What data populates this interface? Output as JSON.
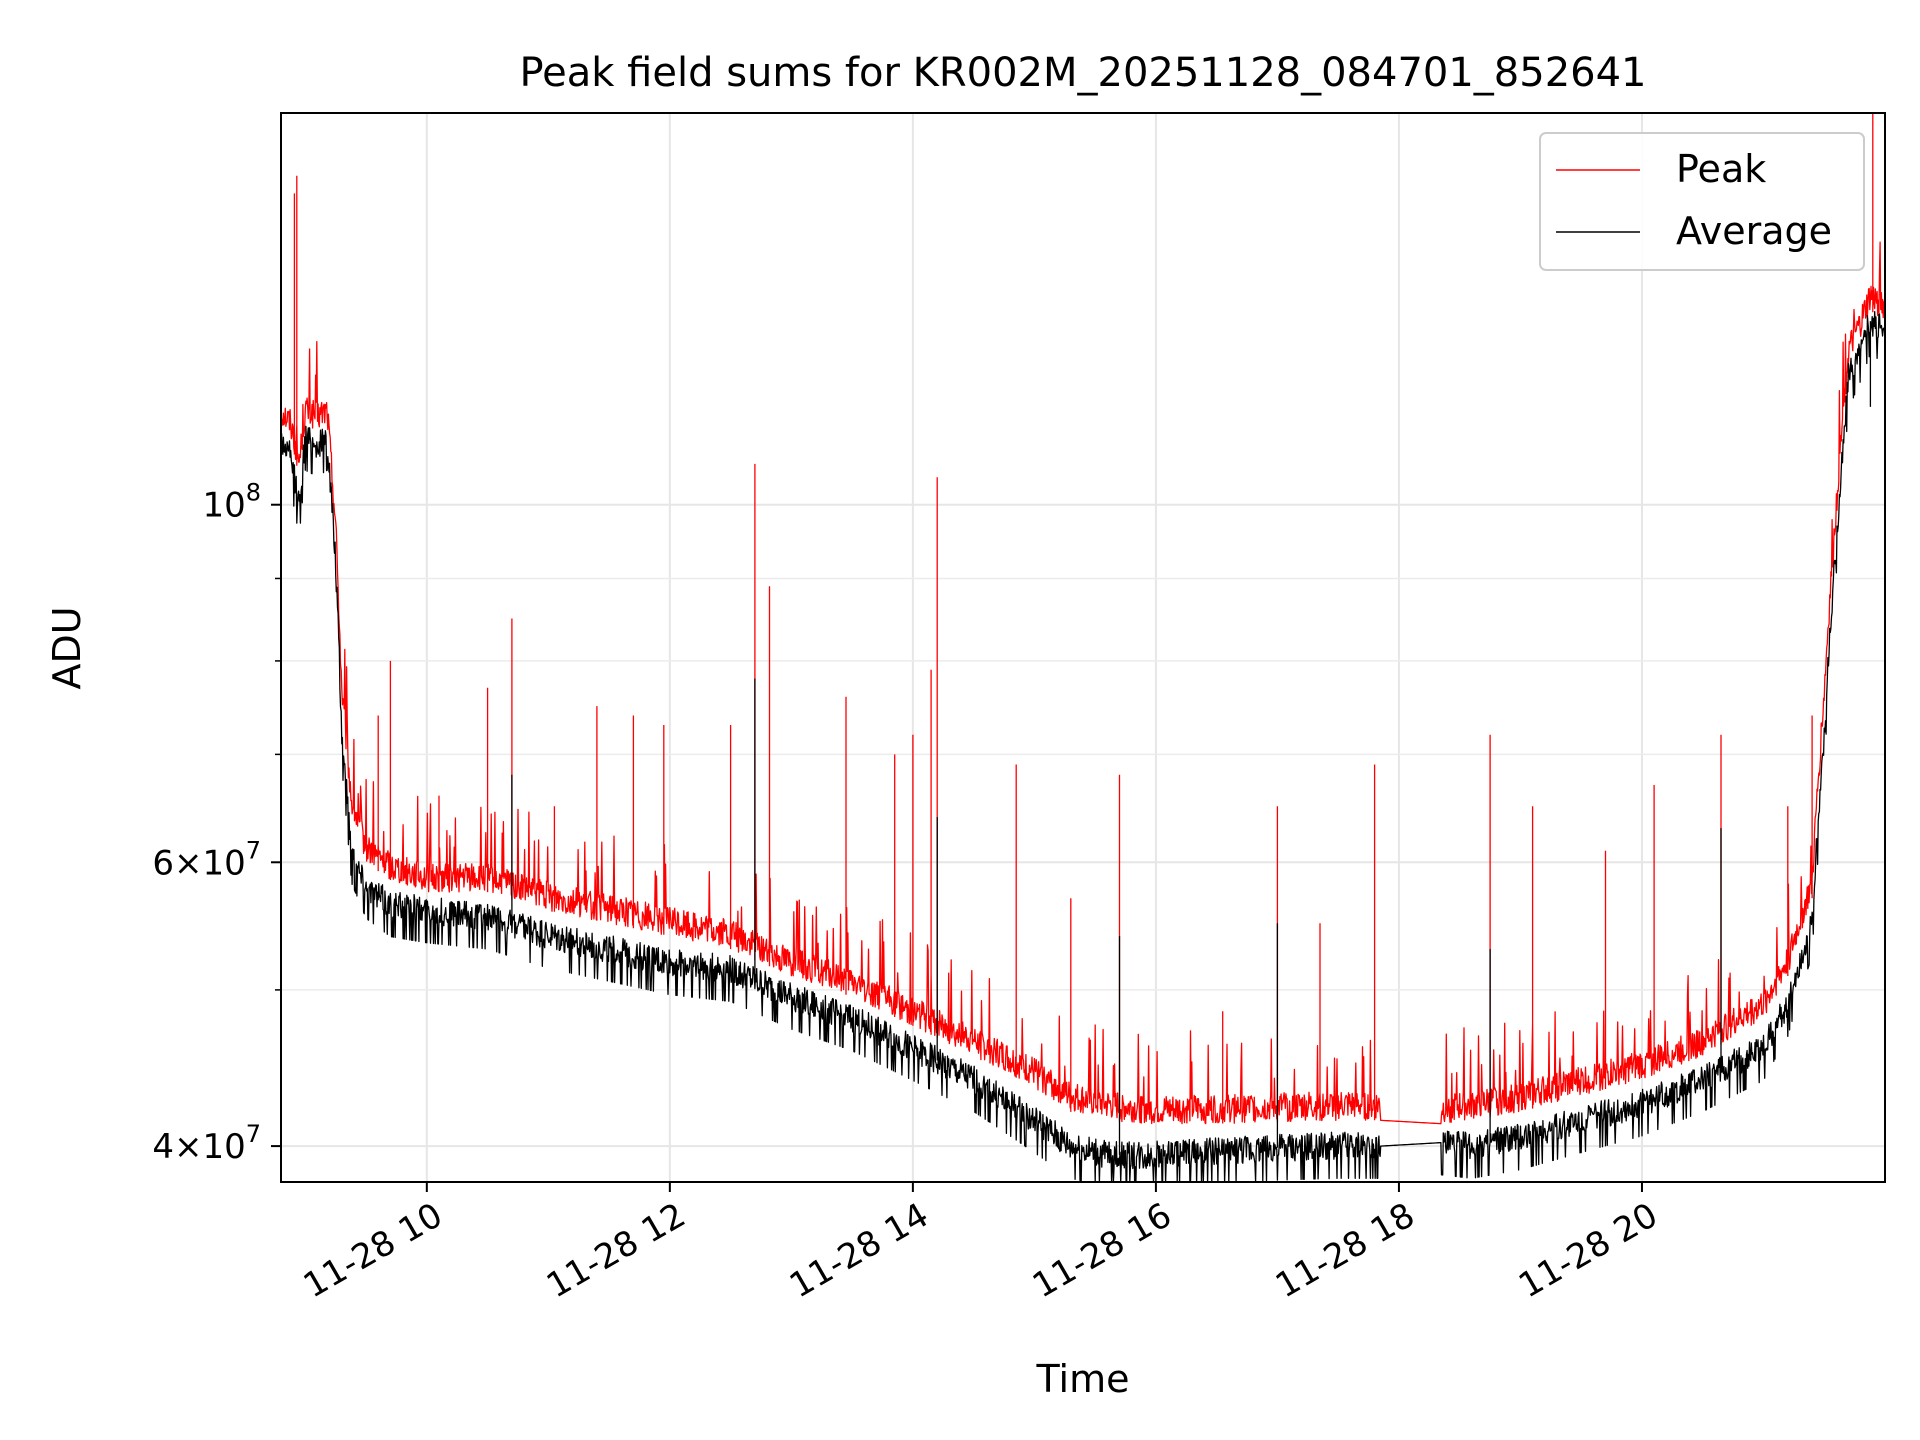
{
  "chart_data": {
    "type": "line",
    "title": "Peak field sums for KR002M_20251128_084701_852641",
    "xlabel": "Time",
    "ylabel": "ADU",
    "yscale": "log",
    "xlim": [
      8.8,
      22.0
    ],
    "ylim": [
      38000000,
      175000000
    ],
    "grid": true,
    "legend_position": "top-right",
    "x_ticks": [
      {
        "value": 10,
        "label": "11-28 10"
      },
      {
        "value": 12,
        "label": "11-28 12"
      },
      {
        "value": 14,
        "label": "11-28 14"
      },
      {
        "value": 16,
        "label": "11-28 16"
      },
      {
        "value": 18,
        "label": "11-28 18"
      },
      {
        "value": 20,
        "label": "11-28 20"
      }
    ],
    "y_ticks": [
      {
        "value": 40000000,
        "mantissa": "4",
        "times": "×",
        "base": "10",
        "exp": "7"
      },
      {
        "value": 60000000,
        "mantissa": "6",
        "times": "×",
        "base": "10",
        "exp": "7"
      },
      {
        "value": 100000000,
        "mantissa": "",
        "times": "",
        "base": "10",
        "exp": "8"
      }
    ],
    "y_minor_ticks": [
      50000000,
      70000000,
      80000000,
      90000000
    ],
    "series": [
      {
        "name": "Peak",
        "color": "#ff0000",
        "x": [
          8.8,
          8.88,
          8.95,
          9.0,
          9.1,
          9.18,
          9.25,
          9.3,
          9.38,
          9.5,
          9.7,
          10.0,
          10.5,
          11.0,
          11.5,
          12.0,
          12.5,
          13.0,
          13.5,
          14.0,
          14.5,
          15.0,
          15.3,
          15.6,
          16.0,
          16.5,
          17.0,
          17.5,
          17.85,
          18.35,
          18.6,
          19.0,
          19.5,
          20.0,
          20.5,
          21.0,
          21.2,
          21.4,
          21.5,
          21.6,
          21.7,
          21.8,
          21.88,
          22.0
        ],
        "values": [
          112000000,
          110000000,
          104000000,
          112000000,
          111000000,
          112000000,
          95000000,
          75000000,
          64000000,
          60000000,
          58500000,
          57500000,
          57500000,
          56000000,
          55000000,
          54000000,
          53000000,
          51000000,
          49500000,
          47500000,
          45500000,
          43500000,
          42000000,
          41500000,
          41200000,
          41300000,
          41400000,
          41500000,
          41500000,
          41300000,
          41500000,
          42000000,
          43000000,
          44000000,
          45500000,
          48000000,
          51000000,
          57000000,
          75000000,
          98000000,
          122000000,
          127000000,
          132000000,
          130000000
        ],
        "spikes": [
          {
            "x": 8.91,
            "value": 156000000
          },
          {
            "x": 8.93,
            "value": 160000000
          },
          {
            "x": 9.6,
            "value": 74000000
          },
          {
            "x": 9.7,
            "value": 80000000
          },
          {
            "x": 10.1,
            "value": 66000000
          },
          {
            "x": 10.5,
            "value": 77000000
          },
          {
            "x": 10.7,
            "value": 85000000
          },
          {
            "x": 11.05,
            "value": 65000000
          },
          {
            "x": 11.4,
            "value": 75000000
          },
          {
            "x": 11.7,
            "value": 74000000
          },
          {
            "x": 11.95,
            "value": 73000000
          },
          {
            "x": 12.5,
            "value": 73000000
          },
          {
            "x": 12.7,
            "value": 106000000
          },
          {
            "x": 12.82,
            "value": 89000000
          },
          {
            "x": 13.45,
            "value": 76000000
          },
          {
            "x": 13.85,
            "value": 70000000
          },
          {
            "x": 14.0,
            "value": 72000000
          },
          {
            "x": 14.15,
            "value": 79000000
          },
          {
            "x": 14.2,
            "value": 104000000
          },
          {
            "x": 14.85,
            "value": 69000000
          },
          {
            "x": 15.3,
            "value": 57000000
          },
          {
            "x": 15.7,
            "value": 68000000
          },
          {
            "x": 16.55,
            "value": 48500000
          },
          {
            "x": 17.0,
            "value": 65000000
          },
          {
            "x": 17.35,
            "value": 55000000
          },
          {
            "x": 17.8,
            "value": 69000000
          },
          {
            "x": 18.75,
            "value": 72000000
          },
          {
            "x": 19.1,
            "value": 65000000
          },
          {
            "x": 19.7,
            "value": 61000000
          },
          {
            "x": 20.1,
            "value": 67000000
          },
          {
            "x": 20.65,
            "value": 72000000
          },
          {
            "x": 21.2,
            "value": 65000000
          },
          {
            "x": 21.4,
            "value": 74000000
          },
          {
            "x": 21.9,
            "value": 175000000
          }
        ]
      },
      {
        "name": "Average",
        "color": "#000000",
        "x": [
          8.8,
          8.88,
          8.95,
          9.0,
          9.1,
          9.18,
          9.25,
          9.3,
          9.38,
          9.5,
          9.7,
          10.0,
          10.5,
          11.0,
          11.5,
          12.0,
          12.5,
          13.0,
          13.5,
          14.0,
          14.5,
          15.0,
          15.3,
          15.6,
          16.0,
          16.5,
          17.0,
          17.5,
          17.85,
          18.35,
          18.6,
          19.0,
          19.5,
          20.0,
          20.5,
          21.0,
          21.2,
          21.4,
          21.5,
          21.6,
          21.7,
          21.8,
          21.88,
          22.0
        ],
        "values": [
          110000000,
          107000000,
          100000000,
          110000000,
          109000000,
          110000000,
          92000000,
          72000000,
          61000000,
          58000000,
          56500000,
          56000000,
          55500000,
          54000000,
          53000000,
          52000000,
          51500000,
          49500000,
          48000000,
          46000000,
          44000000,
          41500000,
          40000000,
          39500000,
          39500000,
          39700000,
          39900000,
          40000000,
          40000000,
          40200000,
          40000000,
          40500000,
          41500000,
          42500000,
          44000000,
          46000000,
          49000000,
          55000000,
          72000000,
          95000000,
          120000000,
          125000000,
          130000000,
          128000000
        ],
        "spikes": [
          {
            "x": 10.7,
            "value": 68000000
          },
          {
            "x": 12.7,
            "value": 78000000
          },
          {
            "x": 14.2,
            "value": 64000000
          },
          {
            "x": 15.7,
            "value": 54000000
          },
          {
            "x": 17.0,
            "value": 55000000
          },
          {
            "x": 18.75,
            "value": 53000000
          },
          {
            "x": 20.65,
            "value": 63000000
          },
          {
            "x": 21.88,
            "value": 115000000
          }
        ]
      }
    ]
  }
}
